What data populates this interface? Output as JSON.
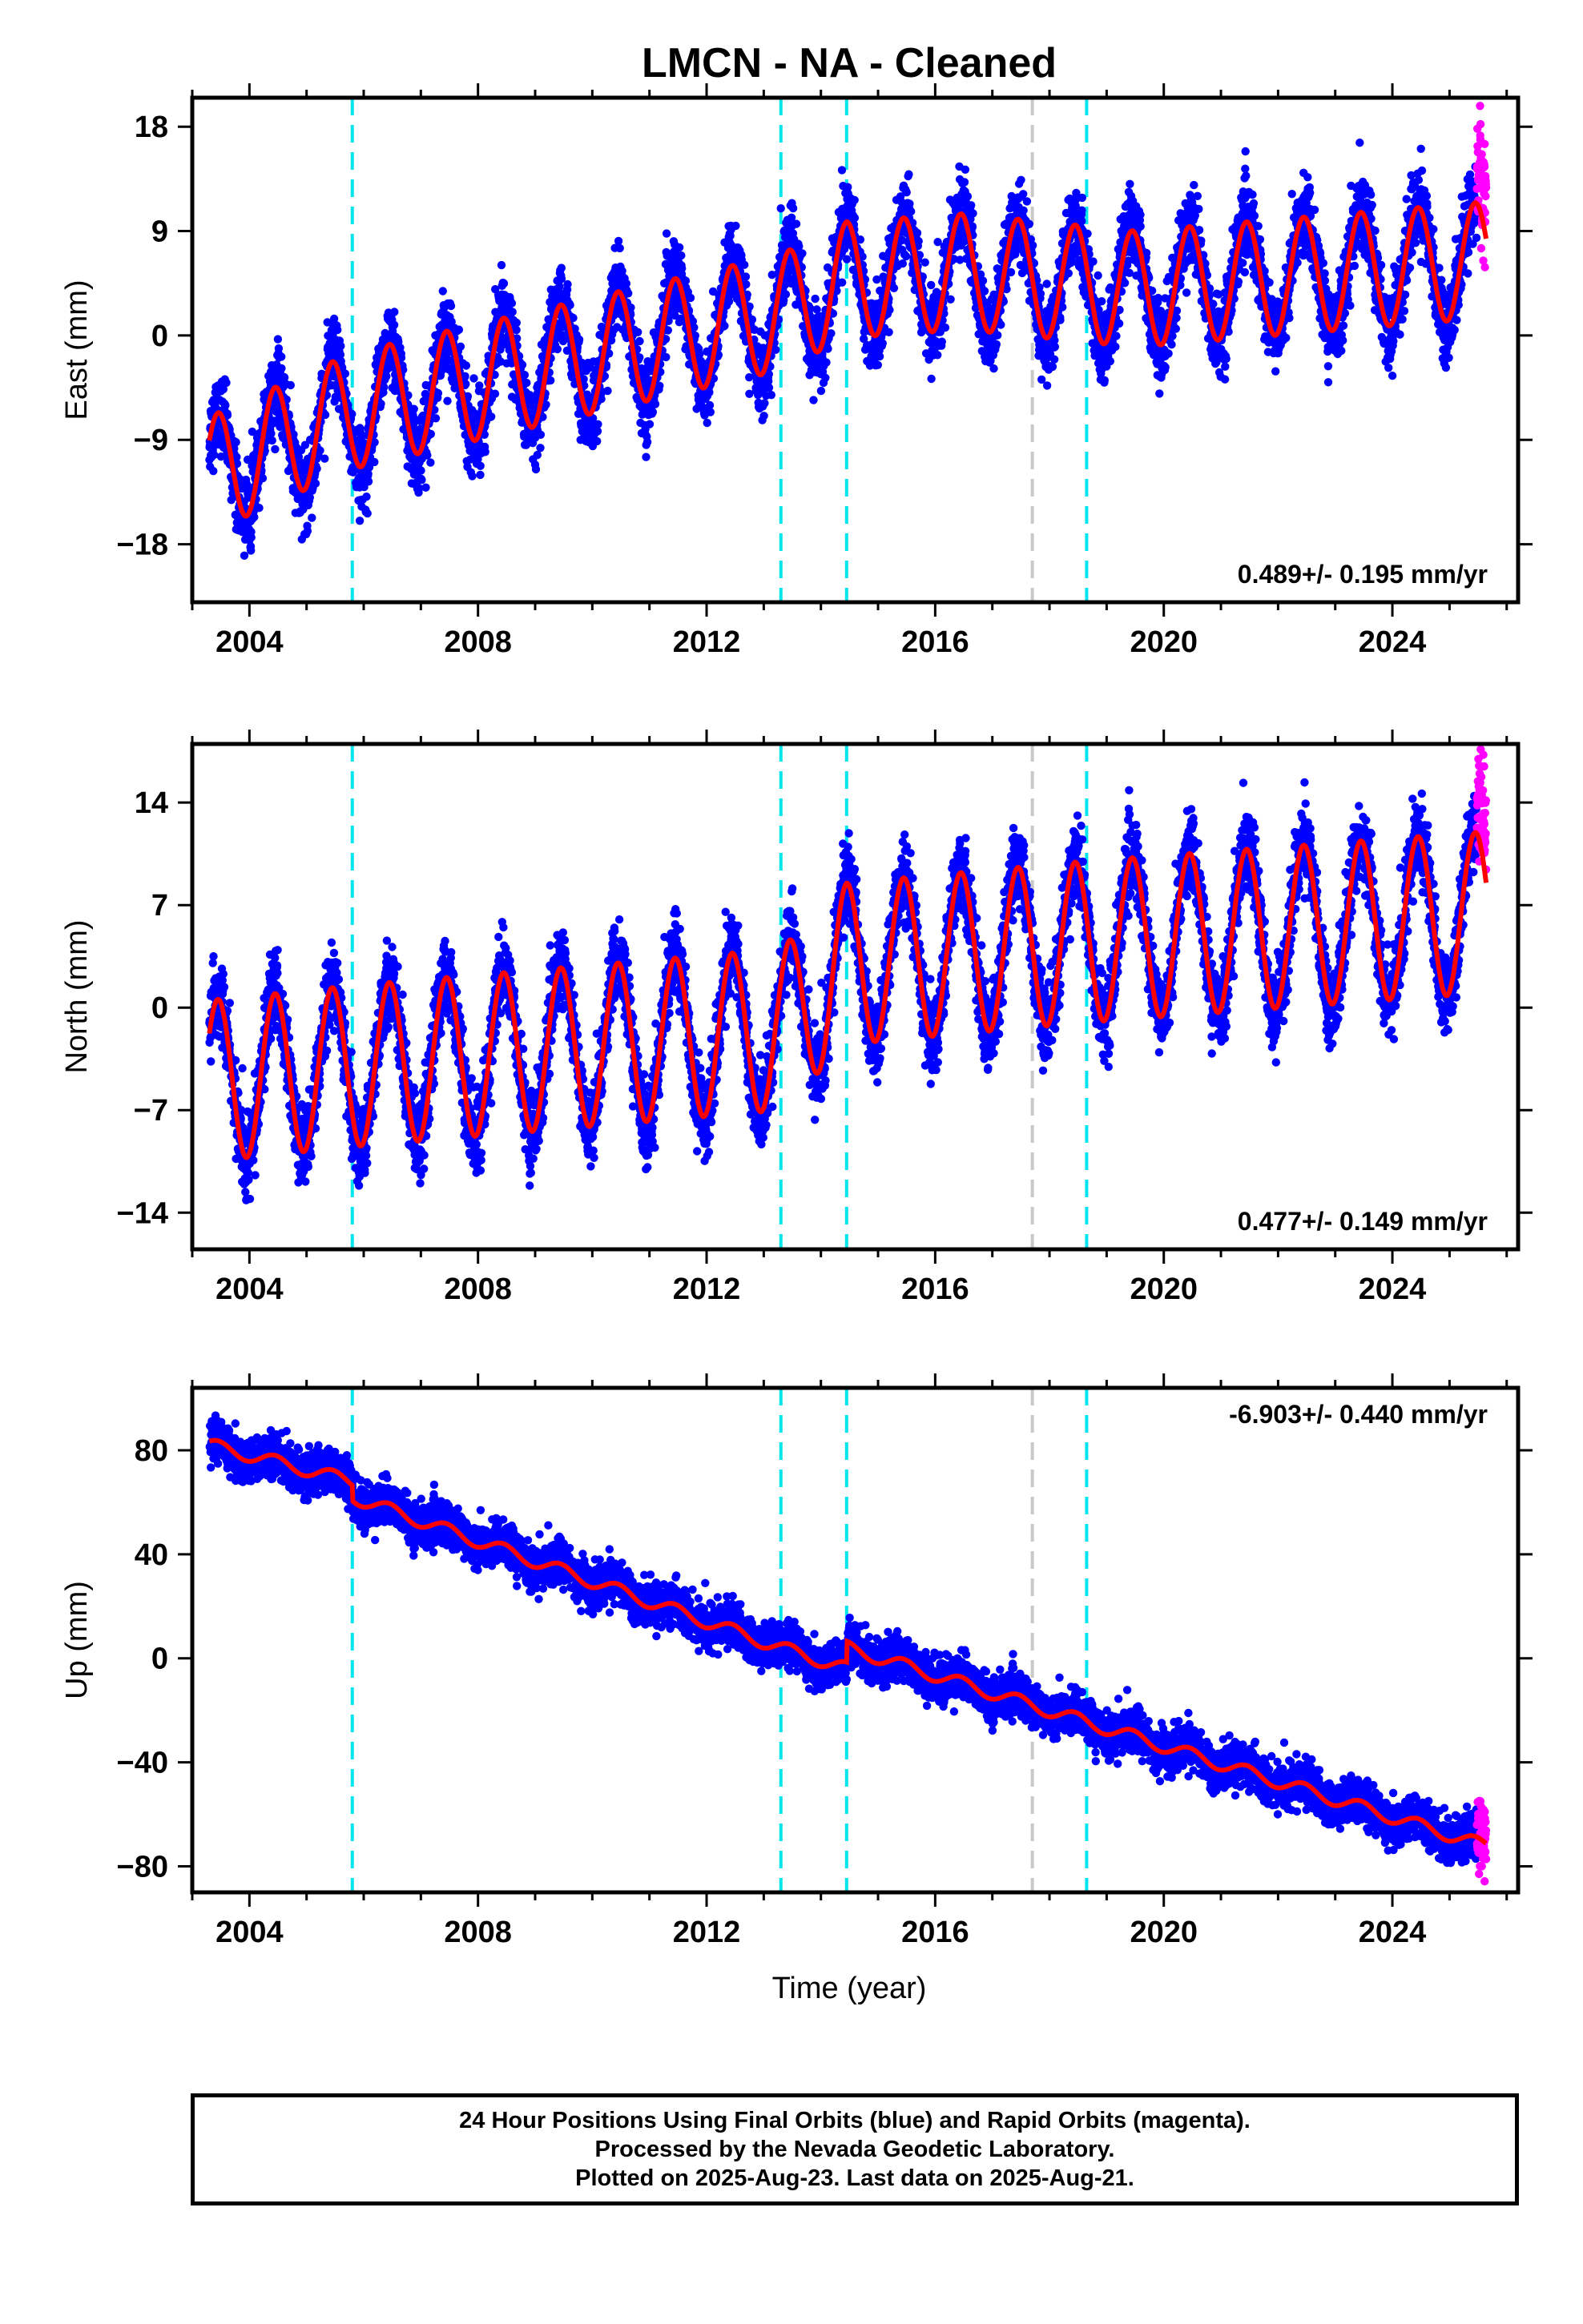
{
  "chart_data": {
    "title": "LMCN  - NA - Cleaned",
    "xlabel": "Time (year)",
    "x_ticks": [
      "2004",
      "2008",
      "2012",
      "2016",
      "2020",
      "2024"
    ],
    "xlim": [
      2003.0,
      2026.2
    ],
    "colors": {
      "final_orbits": "#0000ff",
      "rapid_orbits": "#ff00ff",
      "model": "#ff0000",
      "equipment_change": "#00e5ee",
      "other_event": "#c8c8c8"
    },
    "event_lines": {
      "equipment_change_years": [
        2005.8,
        2013.3,
        2014.45,
        2018.65
      ],
      "other_event_years": [
        2017.7
      ]
    },
    "data_span": {
      "start": 2003.3,
      "final_end": 2025.48,
      "last": 2025.64
    },
    "panels": [
      {
        "type": "scatter",
        "name": "east",
        "ylabel": "East (mm)",
        "y_ticks": [
          "18",
          "9",
          "0",
          "−9",
          "−18"
        ],
        "ylim": [
          -23.0,
          20.5
        ],
        "rate_text": "0.489+/- 0.195 mm/yr",
        "rate_position": "bottom-right",
        "seasonal_amplitude": 5.0,
        "noise": 1.6,
        "offsets": [
          {
            "year": 2003.3,
            "level": -12
          },
          {
            "year": 2005.8,
            "level": -6.5
          },
          {
            "year": 2013.3,
            "level": 2
          },
          {
            "year": 2014.45,
            "level": 4.8
          },
          {
            "year": 2016.5,
            "level": 5.5
          },
          {
            "year": 2019.5,
            "level": 4
          },
          {
            "year": 2025.6,
            "level": 6.5
          }
        ]
      },
      {
        "type": "scatter",
        "name": "north",
        "ylabel": "North (mm)",
        "y_ticks": [
          "14",
          "7",
          "0",
          "−7",
          "−14"
        ],
        "ylim": [
          -16.5,
          18.0
        ],
        "rate_text": "0.477+/- 0.149 mm/yr",
        "rate_position": "bottom-right",
        "seasonal_amplitude": 5.5,
        "noise": 1.3,
        "offsets": [
          {
            "year": 2003.3,
            "level": -5
          },
          {
            "year": 2005.8,
            "level": -4
          },
          {
            "year": 2013.3,
            "level": -1.5
          },
          {
            "year": 2014.45,
            "level": 3
          },
          {
            "year": 2018.65,
            "level": 4.5
          },
          {
            "year": 2025.6,
            "level": 6.5
          }
        ]
      },
      {
        "type": "scatter",
        "name": "up",
        "ylabel": "Up (mm)",
        "y_ticks": [
          "80",
          "40",
          "0",
          "−40",
          "−80"
        ],
        "ylim": [
          -90,
          104
        ],
        "rate_text": "-6.903+/- 0.440 mm/yr",
        "rate_position": "top-right",
        "seasonal_amplitude": 2.5,
        "noise": 4.0,
        "offsets": [
          {
            "year": 2003.3,
            "level": 82
          },
          {
            "year": 2005.8,
            "level": 68
          },
          {
            "year": 2005.81,
            "level": 62
          },
          {
            "year": 2013.3,
            "level": 4
          },
          {
            "year": 2014.45,
            "level": -4
          },
          {
            "year": 2014.46,
            "level": 4
          },
          {
            "year": 2025.6,
            "level": -72
          }
        ]
      }
    ]
  },
  "footer": {
    "line1": "24 Hour Positions Using Final Orbits (blue) and Rapid Orbits (magenta).",
    "line2": "Processed by the Nevada Geodetic Laboratory.",
    "line3": "Plotted on 2025-Aug-23. Last data on 2025-Aug-21."
  }
}
